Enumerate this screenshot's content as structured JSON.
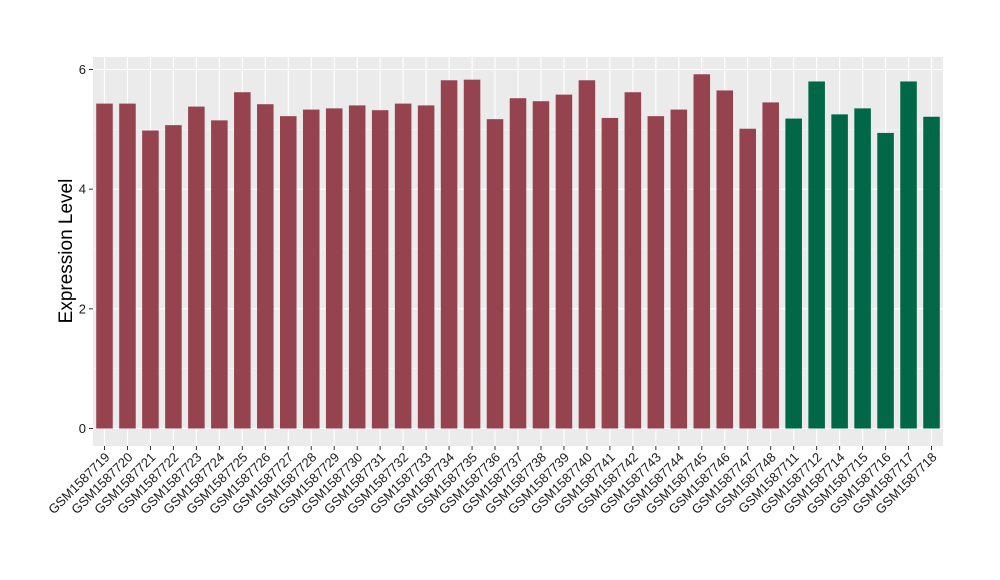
{
  "chart_data": {
    "type": "bar",
    "title": "",
    "xlabel": "",
    "ylabel": "Expression Level",
    "ylim": [
      0,
      6.2
    ],
    "yticks": [
      0,
      2,
      4,
      6
    ],
    "grid": true,
    "categories": [
      "GSM1587719",
      "GSM1587720",
      "GSM1587721",
      "GSM1587722",
      "GSM1587723",
      "GSM1587724",
      "GSM1587725",
      "GSM1587726",
      "GSM1587727",
      "GSM1587728",
      "GSM1587729",
      "GSM1587730",
      "GSM1587731",
      "GSM1587732",
      "GSM1587733",
      "GSM1587734",
      "GSM1587735",
      "GSM1587736",
      "GSM1587737",
      "GSM1587738",
      "GSM1587739",
      "GSM1587740",
      "GSM1587741",
      "GSM1587742",
      "GSM1587743",
      "GSM1587744",
      "GSM1587745",
      "GSM1587746",
      "GSM1587747",
      "GSM1587748",
      "GSM1587711",
      "GSM1587712",
      "GSM1587714",
      "GSM1587715",
      "GSM1587716",
      "GSM1587717",
      "GSM1587718"
    ],
    "values": [
      5.43,
      5.43,
      4.98,
      5.07,
      5.38,
      5.15,
      5.62,
      5.42,
      5.22,
      5.33,
      5.35,
      5.4,
      5.32,
      5.43,
      5.4,
      5.82,
      5.83,
      5.17,
      5.52,
      5.47,
      5.58,
      5.82,
      5.19,
      5.62,
      5.22,
      5.33,
      5.92,
      5.65,
      5.01,
      5.45,
      5.18,
      5.8,
      5.25,
      5.35,
      4.94,
      5.8,
      5.21
    ],
    "group_sizes": [
      30,
      7
    ],
    "colors": [
      "#964350",
      "#006846"
    ]
  }
}
